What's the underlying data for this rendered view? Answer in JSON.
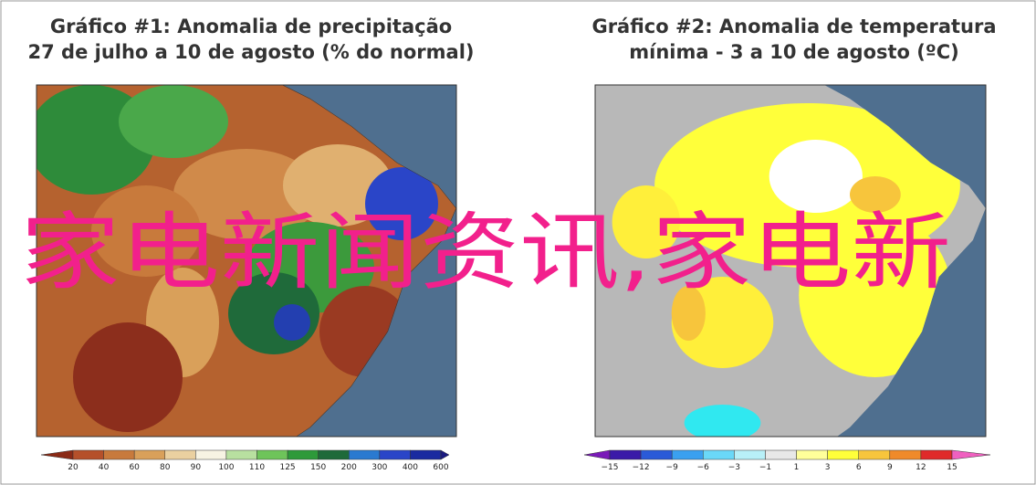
{
  "panels": [
    {
      "title_lines": [
        "Gráfico #1: Anomalia de precipitação",
        "27 de julho a 10 de agosto (% do normal)"
      ],
      "colorbar_labels": [
        20,
        40,
        60,
        80,
        90,
        100,
        110,
        125,
        150,
        200,
        300,
        400,
        600
      ]
    },
    {
      "title_lines": [
        "Gráfico #2: Anomalia de temperatura",
        "mínima - 3 a 10 de agosto (ºC)"
      ],
      "colorbar_labels": [
        "−15",
        "−12",
        "−9",
        "−6",
        "−3",
        "−1",
        "1",
        "3",
        "6",
        "9",
        "12",
        "15"
      ]
    }
  ],
  "watermark": "家电新闻资讯,家电新"
}
